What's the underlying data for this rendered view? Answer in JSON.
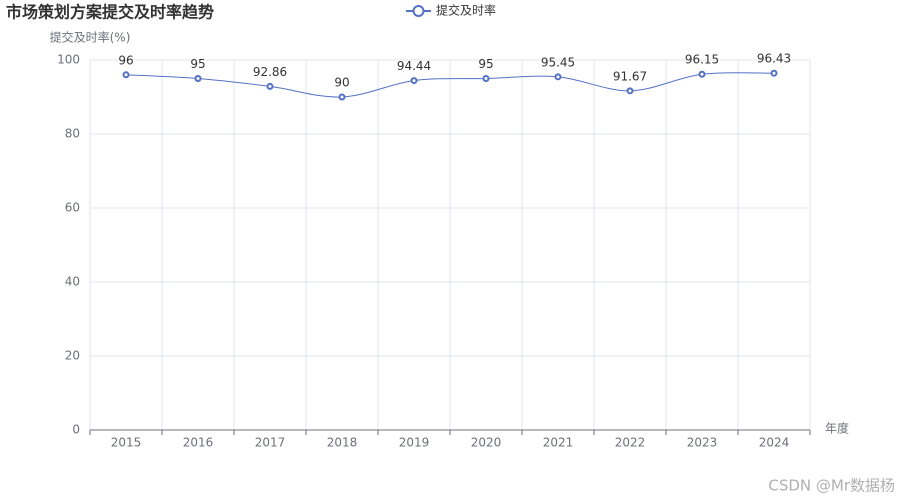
{
  "chart_data": {
    "type": "line",
    "title": "市场策划方案提交及时率趋势",
    "y_axis_label": "提交及时率(%)",
    "x_axis_label": "年度",
    "categories": [
      "2015",
      "2016",
      "2017",
      "2018",
      "2019",
      "2020",
      "2021",
      "2022",
      "2023",
      "2024"
    ],
    "series": [
      {
        "name": "提交及时率",
        "color": "#5470c6",
        "smooth": true,
        "values": [
          96,
          95,
          92.86,
          90,
          94.44,
          95,
          95.45,
          91.67,
          96.15,
          96.43
        ]
      }
    ],
    "ylim": [
      0,
      100
    ],
    "yticks": [
      0,
      20,
      40,
      60,
      80,
      100
    ],
    "grid": true,
    "legend": "top",
    "watermark": "CSDN @Mr数据杨"
  }
}
